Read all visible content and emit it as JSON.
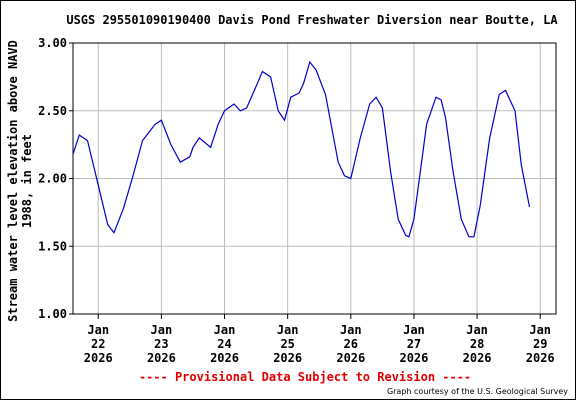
{
  "chart_data": {
    "type": "line",
    "title": "USGS 295501090190400 Davis Pond Freshwater Diversion near Boutte, LA",
    "ylabel_lines": [
      "Stream water level elevation above NAVD",
      "1988, in feet"
    ],
    "xlabel": "",
    "ylim": [
      1.0,
      3.0
    ],
    "y_ticks": [
      "1.00",
      "1.50",
      "2.00",
      "2.50",
      "3.00"
    ],
    "x_range": [
      21.6,
      29.25
    ],
    "x_ticks": [
      {
        "x": 22,
        "month": "Jan",
        "day": "22",
        "year": "2026"
      },
      {
        "x": 23,
        "month": "Jan",
        "day": "23",
        "year": "2026"
      },
      {
        "x": 24,
        "month": "Jan",
        "day": "24",
        "year": "2026"
      },
      {
        "x": 25,
        "month": "Jan",
        "day": "25",
        "year": "2026"
      },
      {
        "x": 26,
        "month": "Jan",
        "day": "26",
        "year": "2026"
      },
      {
        "x": 27,
        "month": "Jan",
        "day": "27",
        "year": "2026"
      },
      {
        "x": 28,
        "month": "Jan",
        "day": "28",
        "year": "2026"
      },
      {
        "x": 29,
        "month": "Jan",
        "day": "29",
        "year": "2026"
      }
    ],
    "grid": true,
    "line_color": "#0000cc",
    "series": [
      {
        "x": [
          21.6,
          21.7,
          21.83,
          22.0,
          22.15,
          22.25,
          22.4,
          22.55,
          22.7,
          22.9,
          23.0,
          23.15,
          23.3,
          23.45,
          23.5,
          23.6,
          23.78,
          23.9,
          24.0,
          24.15,
          24.25,
          24.35,
          24.5,
          24.6,
          24.73,
          24.85,
          24.95,
          25.05,
          25.18,
          25.25,
          25.35,
          25.45,
          25.6,
          25.8,
          25.9,
          26.0,
          26.15,
          26.3,
          26.4,
          26.5,
          26.63,
          26.75,
          26.87,
          26.92,
          27.0,
          27.1,
          27.2,
          27.35,
          27.43,
          27.5,
          27.62,
          27.75,
          27.87,
          27.95,
          28.05,
          28.2,
          28.35,
          28.45,
          28.6,
          28.7,
          28.83
        ],
        "y": [
          2.18,
          2.32,
          2.28,
          1.95,
          1.66,
          1.6,
          1.78,
          2.02,
          2.28,
          2.4,
          2.43,
          2.25,
          2.12,
          2.16,
          2.23,
          2.3,
          2.23,
          2.4,
          2.5,
          2.55,
          2.5,
          2.52,
          2.68,
          2.79,
          2.75,
          2.5,
          2.43,
          2.6,
          2.63,
          2.7,
          2.86,
          2.8,
          2.62,
          2.12,
          2.02,
          2.0,
          2.3,
          2.55,
          2.6,
          2.52,
          2.05,
          1.7,
          1.58,
          1.57,
          1.7,
          2.05,
          2.4,
          2.6,
          2.58,
          2.45,
          2.05,
          1.7,
          1.57,
          1.57,
          1.8,
          2.3,
          2.62,
          2.65,
          2.5,
          2.1,
          1.79
        ]
      }
    ]
  },
  "footer": {
    "provisional": "---- Provisional Data Subject to Revision ----",
    "credit": "Graph courtesy of the U.S. Geological Survey"
  }
}
